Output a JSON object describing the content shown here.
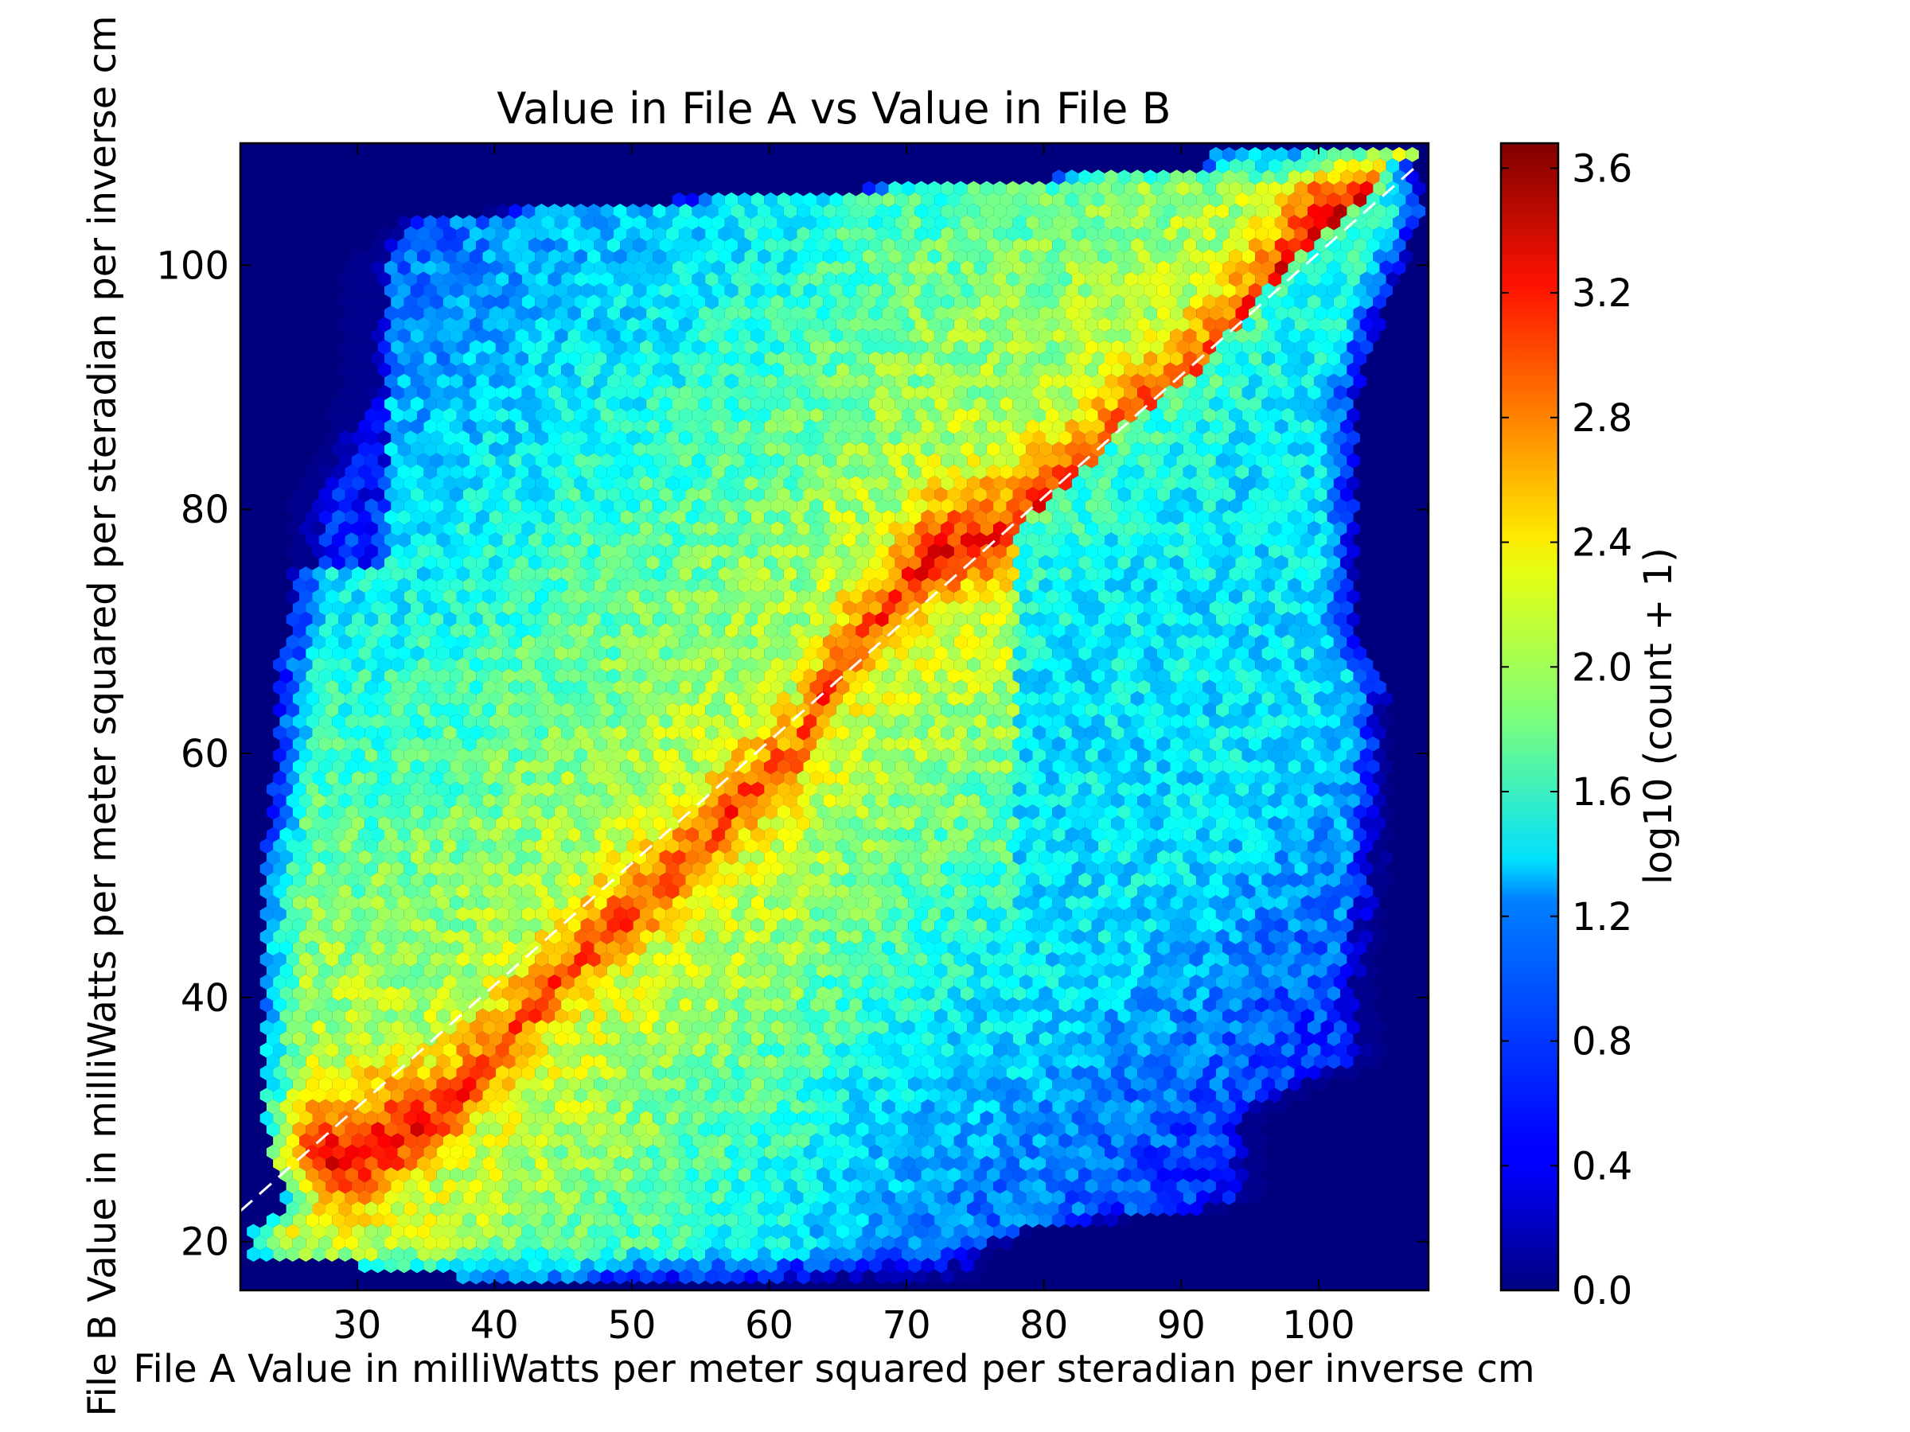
{
  "chart_data": {
    "type": "heatmap",
    "subtype": "hexbin",
    "title": "Value in File A vs Value in File B",
    "xlabel": "File A Value in milliWatts per meter squared per steradian per inverse cm",
    "ylabel": "File B Value in milliWatts per meter squared per steradian per inverse cm",
    "xlim": [
      21.5,
      108
    ],
    "ylim": [
      16,
      110
    ],
    "xticks": [
      30,
      40,
      50,
      60,
      70,
      80,
      90,
      100
    ],
    "yticks": [
      20,
      40,
      60,
      80,
      100
    ],
    "background_color": "#00007f",
    "colorscale": "jet",
    "colorbar": {
      "label": "log10 (count + 1)",
      "range": [
        0.0,
        3.68
      ],
      "ticks": [
        "0.0",
        "0.4",
        "0.8",
        "1.2",
        "1.6",
        "2.0",
        "2.4",
        "2.8",
        "3.2",
        "3.6"
      ]
    },
    "reference_line": {
      "style": "dashed",
      "color": "#ffffff",
      "points": [
        [
          21.5,
          22.5
        ],
        [
          107,
          108
        ]
      ]
    },
    "density_ridge": [
      [
        24,
        27,
        2.9
      ],
      [
        27,
        26.8,
        3.3
      ],
      [
        30,
        27,
        3.35
      ],
      [
        33,
        28.5,
        3.3
      ],
      [
        36,
        30,
        3.15
      ],
      [
        40,
        35,
        3.05
      ],
      [
        45,
        42,
        3.0
      ],
      [
        50,
        47,
        3.05
      ],
      [
        55,
        52,
        3.0
      ],
      [
        58,
        56,
        3.05
      ],
      [
        62,
        60,
        2.95
      ],
      [
        65,
        67,
        3.0
      ],
      [
        68,
        71,
        3.05
      ],
      [
        72,
        76,
        3.25
      ],
      [
        77,
        78,
        3.15
      ],
      [
        82,
        82,
        3.1
      ],
      [
        86,
        87,
        3.1
      ],
      [
        92,
        92,
        3.1
      ],
      [
        96,
        98,
        3.15
      ],
      [
        100,
        102,
        3.5
      ],
      [
        103,
        105,
        3.3
      ],
      [
        106,
        109,
        3.15
      ]
    ],
    "support_region_yx_ranges": [
      [
        17,
        38,
        75
      ],
      [
        19,
        22,
        76
      ],
      [
        21,
        22,
        80
      ],
      [
        23,
        25,
        96
      ],
      [
        30,
        23,
        96
      ],
      [
        33,
        23,
        101
      ],
      [
        35,
        23,
        105
      ],
      [
        40,
        23,
        104
      ],
      [
        50,
        23,
        105
      ],
      [
        58,
        24,
        105
      ],
      [
        63,
        24,
        105
      ],
      [
        66,
        24,
        105
      ],
      [
        70,
        25,
        103
      ],
      [
        80,
        25,
        103
      ],
      [
        90,
        29,
        103
      ],
      [
        100,
        29,
        106
      ],
      [
        104,
        33,
        108
      ],
      [
        108,
        92,
        107
      ]
    ]
  }
}
